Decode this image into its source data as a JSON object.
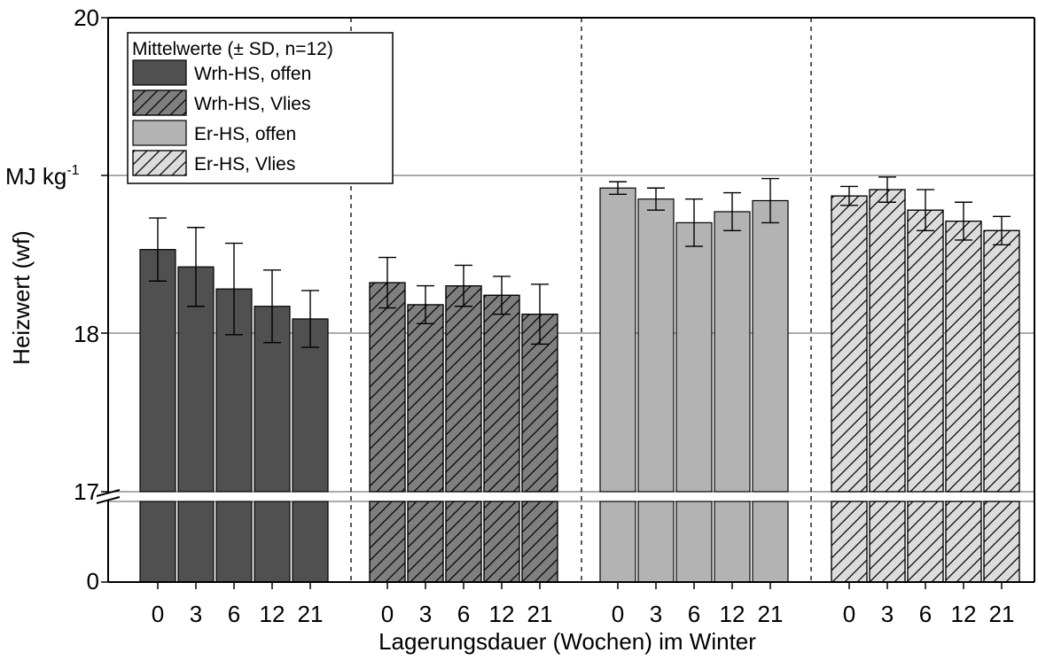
{
  "chart_data": {
    "type": "bar",
    "xlabel": "Lagerungsdauer (Wochen) im Winter",
    "ylabel": "Heizwert (wf)",
    "unit_label": {
      "base": "MJ kg",
      "exponent": "-1"
    },
    "categories": [
      "0",
      "3",
      "6",
      "12",
      "21"
    ],
    "y_ticks_upper": [
      "17",
      "18",
      "20"
    ],
    "y_tick_zero": "0",
    "ylim_upper": [
      17,
      20
    ],
    "ylim_lower": [
      0,
      17
    ],
    "axis_break": true,
    "grid": {
      "horizontal_lines_at": [
        18,
        19
      ]
    },
    "legend": {
      "title": "Mittelwerte (± SD, n=12)",
      "position": "top-left"
    },
    "series": [
      {
        "name": "Wrh-HS, offen",
        "fill": "#505050",
        "hatch": false,
        "values": [
          18.53,
          18.42,
          18.28,
          18.17,
          18.09
        ],
        "sd": [
          0.2,
          0.25,
          0.29,
          0.23,
          0.18
        ]
      },
      {
        "name": "Wrh-HS, Vlies",
        "fill": "#7f7f7f",
        "hatch": true,
        "values": [
          18.32,
          18.18,
          18.3,
          18.24,
          18.12
        ],
        "sd": [
          0.16,
          0.12,
          0.13,
          0.12,
          0.19
        ]
      },
      {
        "name": "Er-HS, offen",
        "fill": "#b3b3b3",
        "hatch": false,
        "values": [
          18.92,
          18.85,
          18.7,
          18.77,
          18.84
        ],
        "sd": [
          0.04,
          0.07,
          0.15,
          0.12,
          0.14
        ]
      },
      {
        "name": "Er-HS, Vlies",
        "fill": "#dcdcdc",
        "hatch": true,
        "values": [
          18.87,
          18.91,
          18.78,
          18.71,
          18.65
        ],
        "sd": [
          0.06,
          0.08,
          0.13,
          0.12,
          0.09
        ]
      }
    ]
  }
}
